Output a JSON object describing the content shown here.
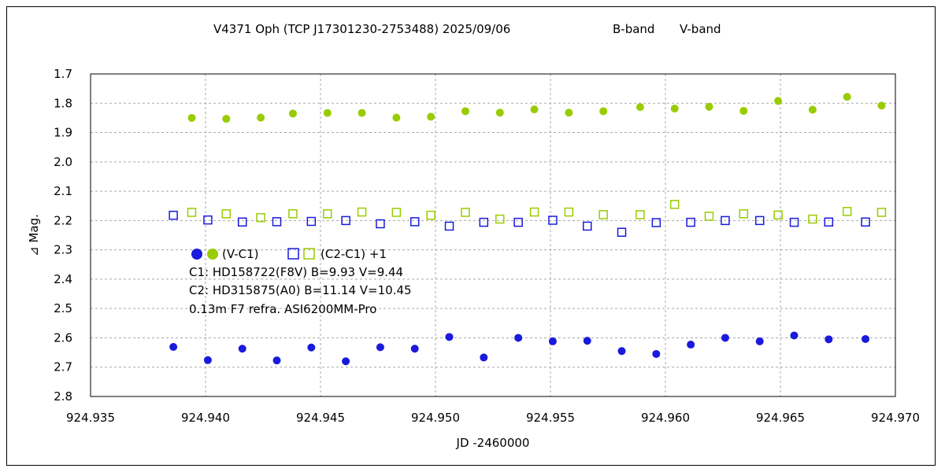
{
  "chart_data": {
    "type": "scatter",
    "title": "V4371 Oph (TCP J17301230-2753488)   2025/09/06",
    "title_bands": [
      {
        "label": "B-band",
        "color": "#1a1adc"
      },
      {
        "label": "V-band",
        "color": "#99cc00"
      }
    ],
    "xlabel": "JD -2460000",
    "ylabel": "⊿ Mag.",
    "xlim": [
      924.935,
      924.97
    ],
    "ylim": [
      1.7,
      2.8
    ],
    "y_inverted": true,
    "x_ticks": [
      "924.935",
      "924.940",
      "924.945",
      "924.950",
      "924.955",
      "924.960",
      "924.965",
      "924.970"
    ],
    "x_tick_values": [
      924.935,
      924.94,
      924.945,
      924.95,
      924.955,
      924.96,
      924.965,
      924.97
    ],
    "y_ticks": [
      "1.7",
      "1.8",
      "1.9",
      "2.0",
      "2.1",
      "2.2",
      "2.3",
      "2.4",
      "2.5",
      "2.6",
      "2.7",
      "2.8"
    ],
    "y_tick_values": [
      1.7,
      1.8,
      1.9,
      2.0,
      2.1,
      2.2,
      2.3,
      2.4,
      2.5,
      2.6,
      2.7,
      2.8
    ],
    "grid": true,
    "legend": {
      "var_label": "(V-C1)",
      "check_label": "(C2-C1) +1",
      "lines": [
        "C1: HD158722(F8V)  B=9.93  V=9.44",
        "C2: HD315875(A0)   B=11.14  V=10.45",
        "0.13m F7 refra.   ASI6200MM-Pro"
      ]
    },
    "series": [
      {
        "band": "V",
        "kind": "var",
        "marker": "filled-circle",
        "color": "#99cc00",
        "x": [
          924.9394,
          924.9409,
          924.9424,
          924.9438,
          924.9453,
          924.9468,
          924.9483,
          924.9498,
          924.9513,
          924.9528,
          924.9543,
          924.9558,
          924.9573,
          924.9589,
          924.9604,
          924.9619,
          924.9634,
          924.9649,
          924.9664,
          924.9679,
          924.9694
        ],
        "y": [
          1.85,
          1.853,
          1.849,
          1.835,
          1.833,
          1.833,
          1.849,
          1.846,
          1.827,
          1.832,
          1.821,
          1.832,
          1.827,
          1.813,
          1.818,
          1.812,
          1.826,
          1.792,
          1.822,
          1.778,
          1.808
        ]
      },
      {
        "band": "V",
        "kind": "check",
        "marker": "open-square",
        "color": "#99cc00",
        "x": [
          924.9394,
          924.9409,
          924.9424,
          924.9438,
          924.9453,
          924.9468,
          924.9483,
          924.9498,
          924.9513,
          924.9528,
          924.9543,
          924.9558,
          924.9573,
          924.9589,
          924.9604,
          924.9619,
          924.9634,
          924.9649,
          924.9664,
          924.9679,
          924.9694
        ],
        "y": [
          2.172,
          2.177,
          2.19,
          2.177,
          2.177,
          2.171,
          2.172,
          2.182,
          2.172,
          2.195,
          2.171,
          2.171,
          2.18,
          2.18,
          2.145,
          2.185,
          2.177,
          2.181,
          2.195,
          2.169,
          2.172
        ]
      },
      {
        "band": "B",
        "kind": "var",
        "marker": "filled-circle",
        "color": "#1a1adc",
        "x": [
          924.9386,
          924.9401,
          924.9416,
          924.9431,
          924.9446,
          924.9461,
          924.9476,
          924.9491,
          924.9506,
          924.9521,
          924.9536,
          924.9551,
          924.9566,
          924.9581,
          924.9596,
          924.9611,
          924.9626,
          924.9641,
          924.9656,
          924.9671,
          924.9687
        ],
        "y": [
          2.631,
          2.676,
          2.637,
          2.677,
          2.633,
          2.68,
          2.632,
          2.637,
          2.597,
          2.667,
          2.6,
          2.612,
          2.61,
          2.645,
          2.655,
          2.623,
          2.6,
          2.612,
          2.592,
          2.605,
          2.604
        ]
      },
      {
        "band": "B",
        "kind": "check",
        "marker": "open-square",
        "color": "#1a1adc",
        "x": [
          924.9386,
          924.9401,
          924.9416,
          924.9431,
          924.9446,
          924.9461,
          924.9476,
          924.9491,
          924.9506,
          924.9521,
          924.9536,
          924.9551,
          924.9566,
          924.9581,
          924.9596,
          924.9611,
          924.9626,
          924.9641,
          924.9656,
          924.9671,
          924.9687
        ],
        "y": [
          2.182,
          2.198,
          2.205,
          2.204,
          2.203,
          2.2,
          2.211,
          2.204,
          2.219,
          2.206,
          2.206,
          2.199,
          2.219,
          2.24,
          2.207,
          2.206,
          2.2,
          2.2,
          2.206,
          2.205,
          2.205
        ]
      }
    ]
  }
}
